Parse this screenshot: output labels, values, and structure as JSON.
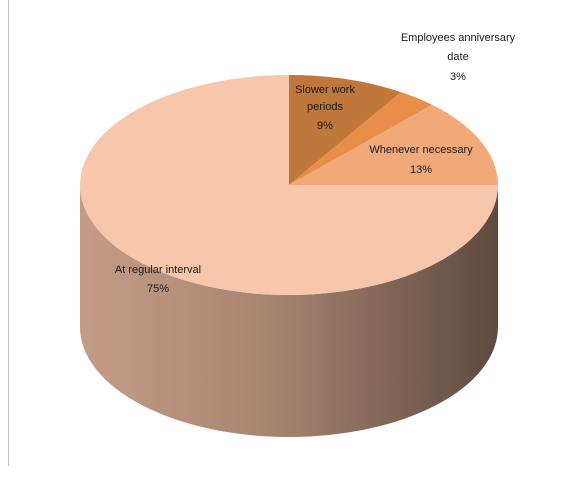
{
  "chart_data": {
    "type": "pie",
    "style": "3d",
    "title": "",
    "slices": [
      {
        "label": "Slower work periods",
        "value": 9,
        "value_label": "9%",
        "color": "#c0773c"
      },
      {
        "label": "Employees anniversary date",
        "value": 3,
        "value_label": "3%",
        "color": "#e88e48"
      },
      {
        "label": "Whenever necessary",
        "value": 13,
        "value_label": "13%",
        "color": "#f2a97a"
      },
      {
        "label": "At regular interval",
        "value": 75,
        "value_label": "75%",
        "color": "#f8c6ab"
      }
    ],
    "legend": "none"
  }
}
